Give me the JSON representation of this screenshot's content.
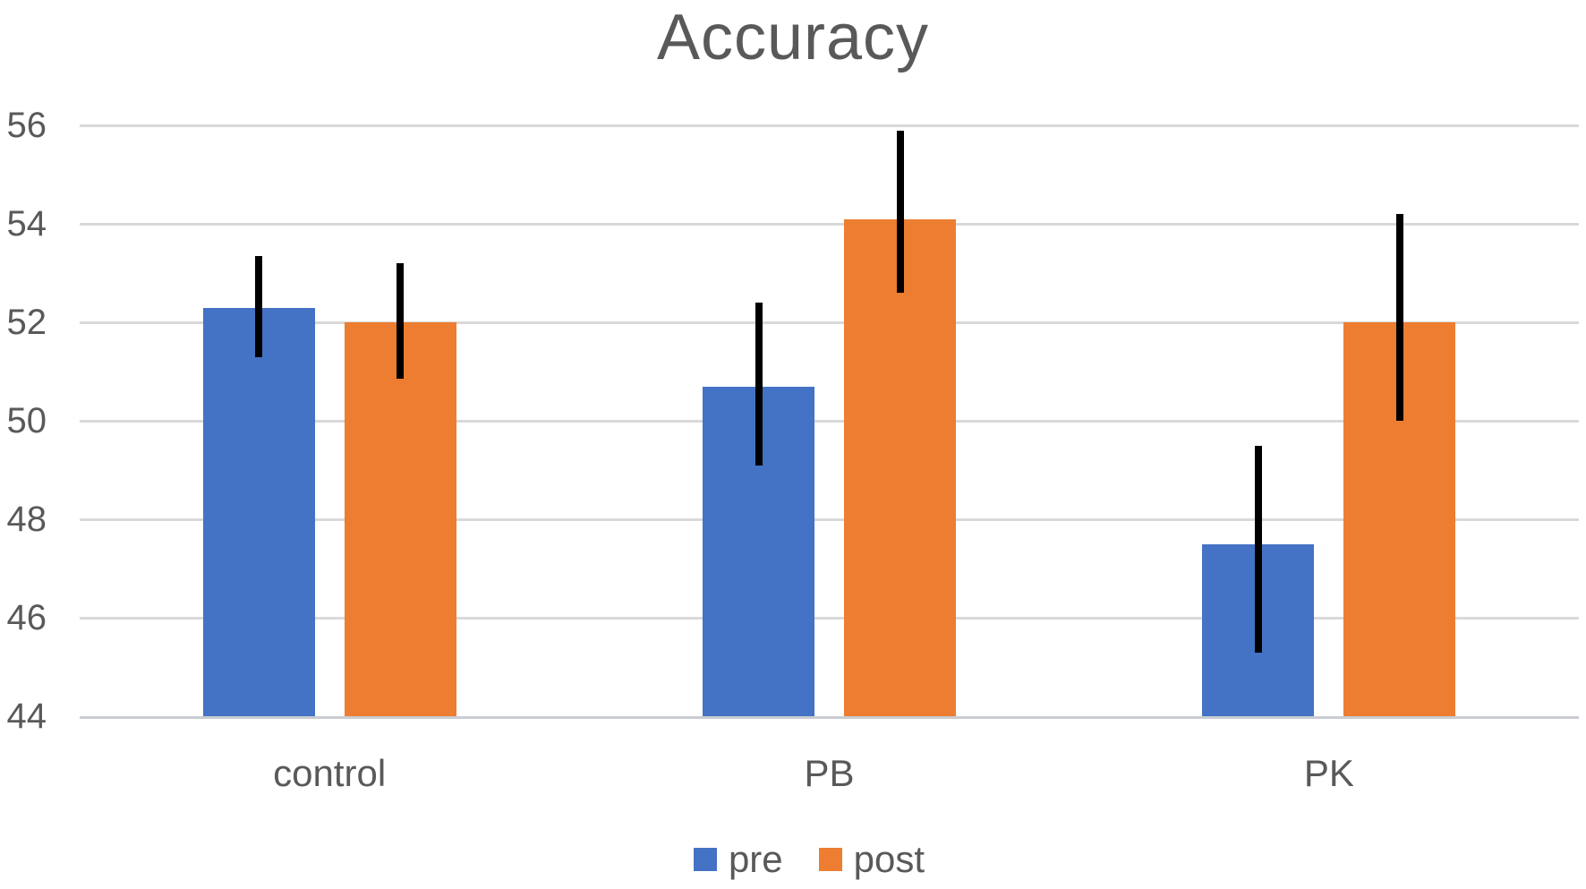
{
  "title": "Accuracy",
  "chart_data": {
    "type": "bar",
    "title": "Accuracy",
    "categories": [
      "control",
      "PB",
      "PK"
    ],
    "series": [
      {
        "name": "pre",
        "color": "#4472C4",
        "values": [
          52.3,
          50.7,
          47.5
        ],
        "error_low": [
          51.3,
          49.1,
          45.3
        ],
        "error_high": [
          53.35,
          52.4,
          49.5
        ]
      },
      {
        "name": "post",
        "color": "#ED7D31",
        "values": [
          52.0,
          54.1,
          52.0
        ],
        "error_low": [
          50.85,
          52.6,
          50.0
        ],
        "error_high": [
          53.2,
          55.9,
          54.2
        ]
      }
    ],
    "ylim": [
      44,
      56
    ],
    "yticks": [
      44,
      46,
      48,
      50,
      52,
      54,
      56
    ],
    "grid": true,
    "has_error_bars": true,
    "legend_position": "bottom",
    "colors": {
      "grid": "#D9D9D9",
      "axis_line": "#C9CDD2",
      "text": "#595959",
      "error_bar": "#000000"
    }
  }
}
